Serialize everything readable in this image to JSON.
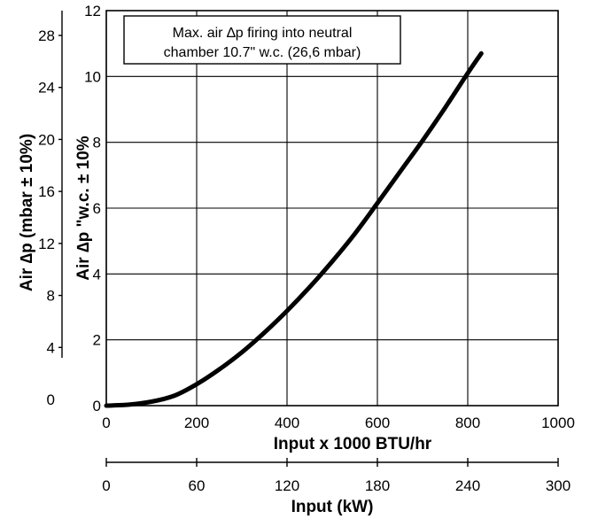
{
  "chart_data": {
    "type": "line",
    "series": [
      {
        "x": [
          0,
          50,
          100,
          150,
          200,
          250,
          300,
          350,
          400,
          450,
          500,
          550,
          600,
          650,
          700,
          750,
          800,
          830
        ],
        "values": [
          0,
          0.03,
          0.12,
          0.3,
          0.65,
          1.1,
          1.62,
          2.22,
          2.88,
          3.6,
          4.38,
          5.22,
          6.15,
          7.1,
          8.05,
          9.05,
          10.1,
          10.7
        ]
      }
    ],
    "xlim": [
      0,
      1000
    ],
    "ylim": [
      0,
      12
    ],
    "grid": true,
    "xticks": [
      "0",
      "200",
      "400",
      "600",
      "800",
      "1000"
    ],
    "yticks": [
      "0",
      "2",
      "4",
      "6",
      "8",
      "10",
      "12"
    ],
    "xlabel": "Input x 1000 BTU/hr",
    "ylabel": "Air ∆p \"w.c. ± 10%",
    "secondary_y_axis": {
      "label": "Air ∆p  (mbar ± 10%)",
      "ticks": [
        "0",
        "4",
        "8",
        "12",
        "16",
        "20",
        "24",
        "28"
      ]
    },
    "secondary_x_axis": {
      "label": "Input (kW)",
      "ticks": [
        "0",
        "60",
        "120",
        "180",
        "240",
        "300"
      ]
    },
    "annotation": {
      "line1": "Max. air ∆p firing into neutral",
      "line2": "chamber 10.7\" w.c. (26,6 mbar)"
    }
  }
}
